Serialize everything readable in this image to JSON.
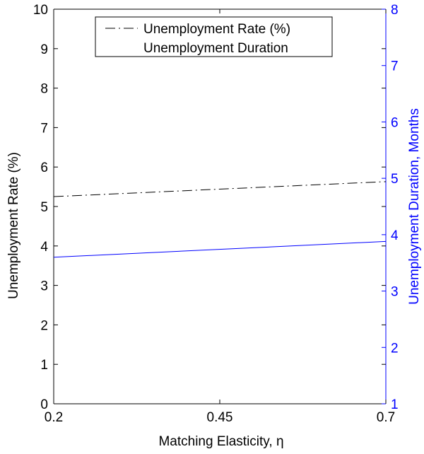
{
  "chart_data": {
    "type": "line",
    "title": "",
    "xlabel": "Matching Elasticity, η",
    "ylabel": "Unemployment Rate (%)",
    "y2label": "Unemployment Duration, Months",
    "xlim": [
      0.2,
      0.7
    ],
    "ylim": [
      0,
      10
    ],
    "y2lim": [
      1,
      8
    ],
    "x_ticks": [
      "0.2",
      "0.45",
      "0.7"
    ],
    "y_ticks": [
      "0",
      "1",
      "2",
      "3",
      "4",
      "5",
      "6",
      "7",
      "8",
      "9",
      "10"
    ],
    "y2_ticks": [
      "1",
      "2",
      "3",
      "4",
      "5",
      "6",
      "7",
      "8"
    ],
    "grid": false,
    "legend_position": "top",
    "series": [
      {
        "name": "Unemployment Rate (%)",
        "axis": "left",
        "color": "#000000",
        "dash": "dashdot",
        "x": [
          0.2,
          0.7
        ],
        "values": [
          5.25,
          5.63
        ]
      },
      {
        "name": "Unemployment Duration",
        "axis": "right",
        "color": "#0000ff",
        "dash": "solid",
        "x": [
          0.2,
          0.7
        ],
        "values": [
          3.6,
          3.88
        ]
      }
    ],
    "colors": {
      "left_axis": "#000000",
      "right_axis": "#0000ff"
    }
  }
}
